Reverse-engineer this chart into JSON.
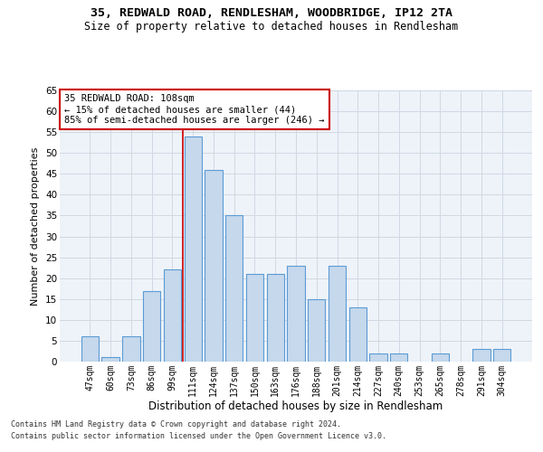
{
  "title1": "35, REDWALD ROAD, RENDLESHAM, WOODBRIDGE, IP12 2TA",
  "title2": "Size of property relative to detached houses in Rendlesham",
  "xlabel": "Distribution of detached houses by size in Rendlesham",
  "ylabel": "Number of detached properties",
  "categories": [
    "47sqm",
    "60sqm",
    "73sqm",
    "86sqm",
    "99sqm",
    "111sqm",
    "124sqm",
    "137sqm",
    "150sqm",
    "163sqm",
    "176sqm",
    "188sqm",
    "201sqm",
    "214sqm",
    "227sqm",
    "240sqm",
    "253sqm",
    "265sqm",
    "278sqm",
    "291sqm",
    "304sqm"
  ],
  "values": [
    6,
    1,
    6,
    17,
    22,
    54,
    46,
    35,
    21,
    21,
    23,
    15,
    23,
    13,
    2,
    2,
    0,
    2,
    0,
    3,
    3
  ],
  "bar_color": "#c5d8ec",
  "bar_edge_color": "#5b9bd5",
  "grid_color": "#d0d8e4",
  "background_color": "#eef3f9",
  "annotation_line1": "35 REDWALD ROAD: 108sqm",
  "annotation_line2": "← 15% of detached houses are smaller (44)",
  "annotation_line3": "85% of semi-detached houses are larger (246) →",
  "annotation_box_color": "#ffffff",
  "annotation_box_edge": "#cc0000",
  "vline_bar_index": 5,
  "ylim": [
    0,
    65
  ],
  "yticks": [
    0,
    5,
    10,
    15,
    20,
    25,
    30,
    35,
    40,
    45,
    50,
    55,
    60,
    65
  ],
  "footer1": "Contains HM Land Registry data © Crown copyright and database right 2024.",
  "footer2": "Contains public sector information licensed under the Open Government Licence v3.0."
}
